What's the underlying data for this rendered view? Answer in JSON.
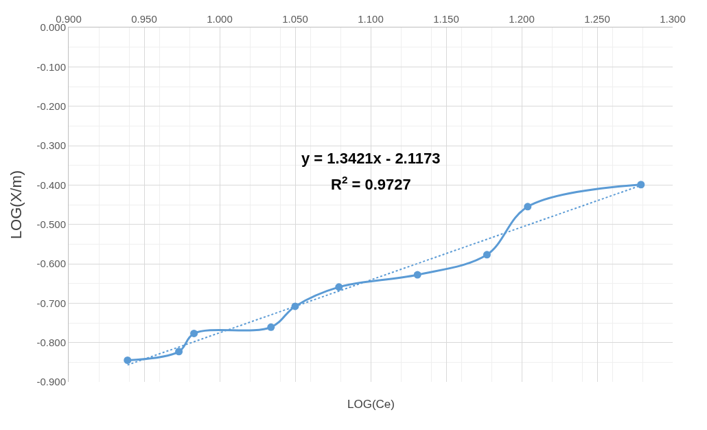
{
  "chart_data": {
    "type": "line",
    "xlabel": "LOG(Ce)",
    "ylabel": "LOG(X/m)",
    "xlim": [
      0.9,
      1.3
    ],
    "xticks": [
      {
        "value": 0.9,
        "label": "0.900"
      },
      {
        "value": 0.95,
        "label": "0.950"
      },
      {
        "value": 1.0,
        "label": "1.000"
      },
      {
        "value": 1.05,
        "label": "1.050"
      },
      {
        "value": 1.1,
        "label": "1.100"
      },
      {
        "value": 1.15,
        "label": "1.150"
      },
      {
        "value": 1.2,
        "label": "1.200"
      },
      {
        "value": 1.25,
        "label": "1.250"
      },
      {
        "value": 1.3,
        "label": "1.300"
      }
    ],
    "ylim": [
      -0.9,
      0.0
    ],
    "yticks": [
      {
        "value": 0.0,
        "label": "0.000"
      },
      {
        "value": -0.1,
        "label": "-0.100"
      },
      {
        "value": -0.2,
        "label": "-0.200"
      },
      {
        "value": -0.3,
        "label": "-0.300"
      },
      {
        "value": -0.4,
        "label": "-0.400"
      },
      {
        "value": -0.5,
        "label": "-0.500"
      },
      {
        "value": -0.6,
        "label": "-0.600"
      },
      {
        "value": -0.7,
        "label": "-0.700"
      },
      {
        "value": -0.8,
        "label": "-0.800"
      },
      {
        "value": -0.9,
        "label": "-0.900"
      }
    ],
    "grid": true,
    "series": [
      {
        "color": "#5b9bd5",
        "marker": "circle",
        "line_style": "solid",
        "x": [
          0.939,
          0.973,
          0.983,
          1.034,
          1.05,
          1.079,
          1.131,
          1.177,
          1.204,
          1.279
        ],
        "values": [
          -0.845,
          -0.823,
          -0.777,
          -0.761,
          -0.708,
          -0.659,
          -0.628,
          -0.577,
          -0.455,
          -0.399
        ]
      },
      {
        "color": "#5b9bd5",
        "marker": "none",
        "line_style": "dotted",
        "x": [
          0.939,
          1.279
        ],
        "values": [
          -0.857,
          -0.401
        ]
      }
    ],
    "annotations": [
      "y = 1.3421x - 2.1173",
      "R$^{2}$ = 0.9727"
    ]
  }
}
